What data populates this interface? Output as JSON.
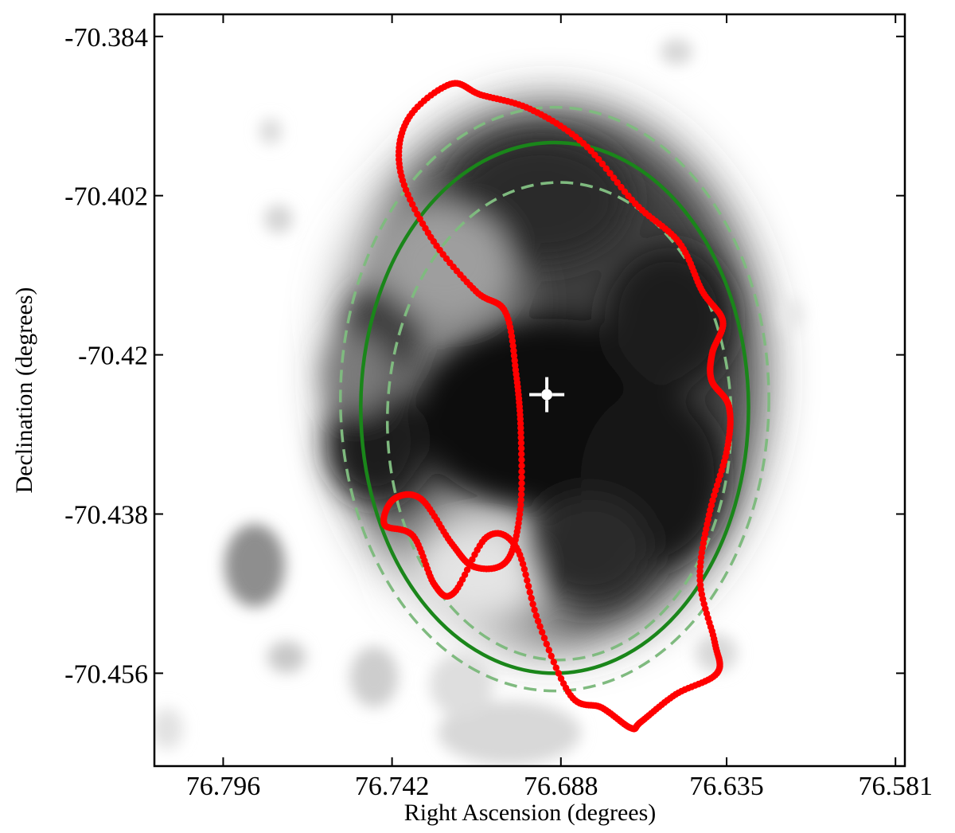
{
  "chart_data": {
    "type": "scatter",
    "title": "",
    "xlabel": "Right Ascension (degrees)",
    "ylabel": "Declination (degrees)",
    "x_inverted": true,
    "xlim": [
      76.818,
      76.578
    ],
    "ylim": [
      -70.4665,
      -70.3815
    ],
    "x_ticks": [
      76.796,
      76.742,
      76.688,
      76.635,
      76.581
    ],
    "x_tick_labels": [
      "76.796",
      "76.742",
      "76.688",
      "76.635",
      "76.581"
    ],
    "y_ticks": [
      -70.384,
      -70.402,
      -70.42,
      -70.438,
      -70.456
    ],
    "y_tick_labels": [
      "-70.384",
      "-70.402",
      "-70.42",
      "-70.438",
      "-70.456"
    ],
    "grid": false,
    "background_image": "grayscale smoothed X-ray emission map",
    "colors": {
      "contour": "#ff0000",
      "ellipse": "#1a861a",
      "ellipse_dashed": "#7fba7f",
      "center_marker": "#ffffff"
    },
    "center_marker": {
      "x": 76.6925,
      "y": -70.4245
    },
    "ellipses": [
      {
        "style": "solid",
        "ra": 76.69,
        "dec": -70.426,
        "semi_axis_ra": 0.062,
        "semi_axis_dec": 0.03
      },
      {
        "style": "dashed",
        "ra": 76.69,
        "dec": -70.425,
        "semi_axis_ra": 0.0685,
        "semi_axis_dec": 0.033
      },
      {
        "style": "dashed",
        "ra": 76.6885,
        "dec": -70.4275,
        "semi_axis_ra": 0.055,
        "semi_axis_dec": 0.027
      }
    ],
    "contour_points": [
      [
        76.7136,
        -70.3906
      ],
      [
        76.6979,
        -70.3922
      ],
      [
        76.6808,
        -70.3961
      ],
      [
        76.6642,
        -70.4029
      ],
      [
        76.6502,
        -70.4073
      ],
      [
        76.6428,
        -70.4128
      ],
      [
        76.6362,
        -70.4162
      ],
      [
        76.6396,
        -70.4198
      ],
      [
        76.6398,
        -70.4229
      ],
      [
        76.6343,
        -70.4258
      ],
      [
        76.6348,
        -70.4306
      ],
      [
        76.6406,
        -70.4381
      ],
      [
        76.6435,
        -70.4455
      ],
      [
        76.6388,
        -70.4525
      ],
      [
        76.6381,
        -70.456
      ],
      [
        76.6513,
        -70.4584
      ],
      [
        76.6624,
        -70.4615
      ],
      [
        76.6656,
        -70.4622
      ],
      [
        76.6749,
        -70.4599
      ],
      [
        76.6849,
        -70.4585
      ],
      [
        76.6953,
        -70.4501
      ],
      [
        76.7022,
        -70.4418
      ],
      [
        76.7117,
        -70.4406
      ],
      [
        76.7222,
        -70.4469
      ],
      [
        76.7284,
        -70.446
      ],
      [
        76.7352,
        -70.4405
      ],
      [
        76.7444,
        -70.4392
      ],
      [
        76.7414,
        -70.4363
      ],
      [
        76.7327,
        -70.4363
      ],
      [
        76.7228,
        -70.4414
      ],
      [
        76.7155,
        -70.444
      ],
      [
        76.7053,
        -70.4433
      ],
      [
        76.701,
        -70.4375
      ],
      [
        76.7008,
        -70.4288
      ],
      [
        76.7023,
        -70.4222
      ],
      [
        76.7057,
        -70.4152
      ],
      [
        76.7152,
        -70.4128
      ],
      [
        76.7296,
        -70.4067
      ],
      [
        76.7393,
        -70.3993
      ],
      [
        76.737,
        -70.3934
      ],
      [
        76.7234,
        -70.3894
      ],
      [
        76.7136,
        -70.3906
      ]
    ]
  }
}
